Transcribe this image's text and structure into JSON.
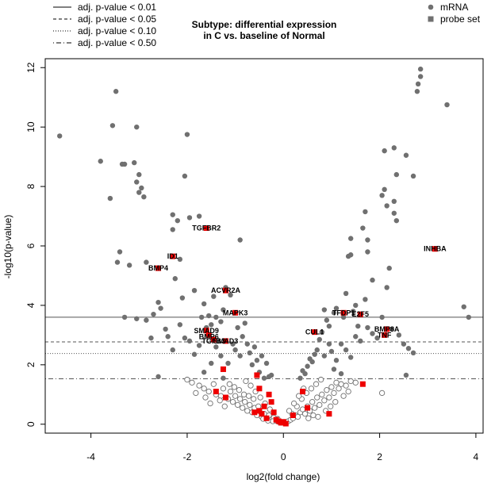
{
  "chart_data": {
    "type": "scatter",
    "title_lines": [
      "Subtype: differential expression",
      "in C vs. baseline of Normal"
    ],
    "xlabel": "log2(fold change)",
    "ylabel": "-log10(p-value)",
    "xlim": [
      -4.95,
      4.15
    ],
    "ylim": [
      -0.3,
      12.3
    ],
    "xticks": [
      -4,
      -2,
      0,
      2,
      4
    ],
    "yticks": [
      0,
      2,
      4,
      6,
      8,
      10,
      12
    ],
    "threshold_lines": [
      {
        "label": "adj. p-value < 0.01",
        "y": 3.6,
        "style": "solid"
      },
      {
        "label": "adj. p-value < 0.05",
        "y": 2.77,
        "style": "dashed"
      },
      {
        "label": "adj. p-value < 0.10",
        "y": 2.38,
        "style": "dotted"
      },
      {
        "label": "adj. p-value < 0.50",
        "y": 1.53,
        "style": "dotdash"
      }
    ],
    "legend_right": [
      {
        "label": "mRNA",
        "marker": "circle",
        "color": "#707070"
      },
      {
        "label": "probe set",
        "marker": "square",
        "color": "#707070"
      }
    ],
    "colors": {
      "significant": "#707070",
      "nonsignificant_stroke": "#707070",
      "probe": "#ee0000"
    },
    "significant_points": [
      [
        -4.65,
        9.7
      ],
      [
        -3.8,
        8.85
      ],
      [
        -3.6,
        7.6
      ],
      [
        -3.55,
        10.05
      ],
      [
        -3.48,
        11.2
      ],
      [
        -3.45,
        5.45
      ],
      [
        -3.4,
        5.8
      ],
      [
        -3.35,
        8.75
      ],
      [
        -3.3,
        8.75
      ],
      [
        -3.2,
        5.35
      ],
      [
        -3.1,
        8.8
      ],
      [
        -3.05,
        10.0
      ],
      [
        -3.05,
        8.15
      ],
      [
        -3.0,
        8.4
      ],
      [
        -3.0,
        7.8
      ],
      [
        -2.95,
        7.95
      ],
      [
        -2.9,
        7.65
      ],
      [
        -2.85,
        5.45
      ],
      [
        -2.6,
        4.1
      ],
      [
        -2.55,
        3.9
      ],
      [
        -2.45,
        3.2
      ],
      [
        -2.4,
        2.95
      ],
      [
        -2.3,
        7.05
      ],
      [
        -2.3,
        6.55
      ],
      [
        -2.25,
        4.9
      ],
      [
        -2.2,
        6.85
      ],
      [
        -2.15,
        5.55
      ],
      [
        -2.1,
        4.25
      ],
      [
        -2.05,
        8.35
      ],
      [
        -2.0,
        9.75
      ],
      [
        -1.95,
        6.95
      ],
      [
        -1.85,
        4.5
      ],
      [
        -1.75,
        7.0
      ],
      [
        -1.7,
        3.6
      ],
      [
        -1.65,
        4.05
      ],
      [
        -1.6,
        3.25
      ],
      [
        -1.55,
        3.65
      ],
      [
        -1.5,
        3.35
      ],
      [
        -1.45,
        4.3
      ],
      [
        -1.4,
        3.6
      ],
      [
        -1.3,
        3.45
      ],
      [
        -1.25,
        3.85
      ],
      [
        -1.2,
        4.6
      ],
      [
        -1.1,
        4.35
      ],
      [
        -0.9,
        6.2
      ],
      [
        -0.95,
        3.25
      ],
      [
        -0.85,
        2.95
      ],
      [
        -0.8,
        3.4
      ],
      [
        -0.75,
        2.7
      ],
      [
        -0.7,
        2.4
      ],
      [
        -0.65,
        2.0
      ],
      [
        -0.6,
        2.6
      ],
      [
        -0.55,
        2.15
      ],
      [
        -0.5,
        1.75
      ],
      [
        -0.45,
        2.3
      ],
      [
        -0.4,
        1.55
      ],
      [
        -0.35,
        2.05
      ],
      [
        -0.3,
        1.6
      ],
      [
        -0.25,
        1.65
      ],
      [
        -1.0,
        2.5
      ],
      [
        -0.9,
        2.3
      ],
      [
        -1.05,
        2.7
      ],
      [
        -1.15,
        2.05
      ],
      [
        -1.3,
        2.3
      ],
      [
        -1.4,
        2.6
      ],
      [
        -1.5,
        2.05
      ],
      [
        -1.65,
        1.75
      ],
      [
        -1.75,
        2.65
      ],
      [
        -1.85,
        2.35
      ],
      [
        -1.95,
        2.8
      ],
      [
        -2.05,
        2.9
      ],
      [
        -2.15,
        3.35
      ],
      [
        -2.7,
        3.7
      ],
      [
        -2.75,
        2.9
      ],
      [
        -2.85,
        3.5
      ],
      [
        -3.3,
        3.6
      ],
      [
        -3.05,
        3.55
      ],
      [
        -2.6,
        1.6
      ],
      [
        -2.3,
        2.5
      ],
      [
        -1.25,
        1.55
      ],
      [
        2.85,
        11.95
      ],
      [
        2.8,
        11.45
      ],
      [
        2.78,
        11.2
      ],
      [
        2.85,
        11.7
      ],
      [
        3.4,
        10.75
      ],
      [
        2.3,
        9.3
      ],
      [
        2.1,
        9.2
      ],
      [
        2.55,
        9.05
      ],
      [
        2.35,
        8.4
      ],
      [
        2.7,
        8.35
      ],
      [
        2.1,
        7.9
      ],
      [
        2.05,
        7.7
      ],
      [
        2.3,
        7.5
      ],
      [
        2.15,
        7.35
      ],
      [
        2.3,
        7.1
      ],
      [
        2.35,
        6.85
      ],
      [
        1.7,
        7.15
      ],
      [
        1.65,
        6.6
      ],
      [
        1.75,
        6.2
      ],
      [
        1.4,
        6.25
      ],
      [
        1.35,
        5.65
      ],
      [
        1.4,
        5.7
      ],
      [
        1.75,
        5.8
      ],
      [
        2.2,
        5.25
      ],
      [
        2.15,
        4.6
      ],
      [
        1.85,
        4.85
      ],
      [
        1.7,
        4.2
      ],
      [
        1.5,
        4.0
      ],
      [
        1.3,
        4.4
      ],
      [
        1.1,
        3.9
      ],
      [
        1.05,
        3.75
      ],
      [
        1.25,
        3.6
      ],
      [
        1.45,
        3.8
      ],
      [
        0.85,
        3.85
      ],
      [
        0.9,
        3.5
      ],
      [
        0.95,
        3.3
      ],
      [
        0.8,
        3.1
      ],
      [
        0.75,
        2.85
      ],
      [
        0.7,
        2.5
      ],
      [
        0.65,
        2.35
      ],
      [
        0.6,
        2.1
      ],
      [
        0.55,
        2.2
      ],
      [
        0.5,
        1.95
      ],
      [
        0.45,
        1.7
      ],
      [
        0.4,
        1.8
      ],
      [
        0.35,
        1.55
      ],
      [
        0.85,
        2.3
      ],
      [
        1.0,
        2.45
      ],
      [
        1.1,
        2.15
      ],
      [
        1.2,
        2.7
      ],
      [
        1.3,
        2.5
      ],
      [
        1.4,
        2.25
      ],
      [
        1.5,
        2.95
      ],
      [
        1.6,
        2.8
      ],
      [
        1.75,
        3.25
      ],
      [
        1.85,
        3.05
      ],
      [
        1.95,
        2.9
      ],
      [
        2.05,
        3.6
      ],
      [
        2.25,
        3.2
      ],
      [
        2.4,
        3.0
      ],
      [
        2.5,
        2.7
      ],
      [
        2.6,
        2.55
      ],
      [
        2.7,
        2.4
      ],
      [
        2.55,
        1.65
      ],
      [
        3.75,
        3.95
      ],
      [
        3.85,
        3.6
      ],
      [
        1.55,
        3.3
      ],
      [
        0.95,
        2.7
      ],
      [
        1.2,
        1.7
      ],
      [
        1.05,
        1.85
      ]
    ],
    "nonsignificant_points": [
      [
        -1.9,
        1.4
      ],
      [
        -1.75,
        1.3
      ],
      [
        -1.65,
        1.2
      ],
      [
        -1.55,
        1.1
      ],
      [
        -1.45,
        1.35
      ],
      [
        -1.4,
        1.0
      ],
      [
        -1.3,
        0.95
      ],
      [
        -1.25,
        1.2
      ],
      [
        -1.15,
        0.85
      ],
      [
        -1.1,
        1.1
      ],
      [
        -1.05,
        0.75
      ],
      [
        -1.0,
        0.95
      ],
      [
        -0.95,
        0.65
      ],
      [
        -0.9,
        0.85
      ],
      [
        -0.85,
        0.55
      ],
      [
        -0.8,
        0.75
      ],
      [
        -0.75,
        0.45
      ],
      [
        -0.7,
        0.65
      ],
      [
        -0.65,
        0.4
      ],
      [
        -0.6,
        0.55
      ],
      [
        -0.55,
        0.3
      ],
      [
        -0.5,
        0.45
      ],
      [
        -0.45,
        0.25
      ],
      [
        -0.4,
        0.35
      ],
      [
        -0.35,
        0.2
      ],
      [
        -0.3,
        0.3
      ],
      [
        -0.25,
        0.15
      ],
      [
        -0.2,
        0.22
      ],
      [
        -0.15,
        0.12
      ],
      [
        -0.1,
        0.08
      ],
      [
        -0.05,
        0.05
      ],
      [
        -0.12,
        0.18
      ],
      [
        -0.22,
        0.1
      ],
      [
        -0.32,
        0.12
      ],
      [
        -0.42,
        0.18
      ],
      [
        -0.52,
        0.6
      ],
      [
        -0.62,
        0.85
      ],
      [
        -0.72,
        0.95
      ],
      [
        -0.82,
        1.0
      ],
      [
        -0.92,
        1.15
      ],
      [
        -1.02,
        1.25
      ],
      [
        -1.12,
        1.35
      ],
      [
        -1.22,
        0.6
      ],
      [
        -1.32,
        0.8
      ],
      [
        -1.52,
        0.7
      ],
      [
        -1.62,
        0.9
      ],
      [
        -1.82,
        1.05
      ],
      [
        -2.0,
        1.5
      ],
      [
        -0.58,
        1.1
      ],
      [
        -0.48,
        0.9
      ],
      [
        -0.38,
        0.7
      ],
      [
        -0.28,
        0.5
      ],
      [
        -0.68,
        1.3
      ],
      [
        -0.78,
        1.45
      ],
      [
        0.05,
        0.05
      ],
      [
        0.1,
        0.1
      ],
      [
        0.15,
        0.15
      ],
      [
        0.2,
        0.2
      ],
      [
        0.25,
        0.3
      ],
      [
        0.3,
        0.25
      ],
      [
        0.35,
        0.4
      ],
      [
        0.4,
        0.5
      ],
      [
        0.45,
        0.35
      ],
      [
        0.5,
        0.6
      ],
      [
        0.55,
        0.45
      ],
      [
        0.6,
        0.75
      ],
      [
        0.65,
        0.55
      ],
      [
        0.7,
        0.9
      ],
      [
        0.75,
        0.65
      ],
      [
        0.8,
        1.0
      ],
      [
        0.85,
        0.8
      ],
      [
        0.9,
        1.15
      ],
      [
        0.95,
        0.9
      ],
      [
        1.0,
        1.25
      ],
      [
        1.05,
        1.05
      ],
      [
        1.1,
        1.4
      ],
      [
        1.15,
        1.2
      ],
      [
        1.2,
        1.35
      ],
      [
        1.3,
        1.3
      ],
      [
        1.4,
        1.45
      ],
      [
        1.5,
        1.4
      ],
      [
        2.05,
        1.05
      ],
      [
        0.18,
        0.35
      ],
      [
        0.28,
        0.6
      ],
      [
        0.38,
        0.85
      ],
      [
        0.48,
        1.05
      ],
      [
        0.58,
        1.2
      ],
      [
        0.68,
        1.35
      ],
      [
        0.78,
        1.5
      ],
      [
        0.88,
        0.45
      ],
      [
        0.98,
        0.6
      ],
      [
        1.08,
        0.75
      ],
      [
        0.42,
        1.2
      ],
      [
        0.32,
        0.95
      ],
      [
        0.22,
        0.7
      ],
      [
        0.12,
        0.45
      ],
      [
        0.72,
        0.25
      ],
      [
        0.62,
        0.3
      ],
      [
        0.52,
        0.2
      ],
      [
        1.25,
        0.95
      ],
      [
        1.35,
        1.1
      ]
    ],
    "probe_points": [
      [
        -0.45,
        0.35
      ],
      [
        -0.4,
        0.6
      ],
      [
        -0.35,
        0.2
      ],
      [
        -0.3,
        1.0
      ],
      [
        -0.25,
        0.75
      ],
      [
        -0.2,
        0.4
      ],
      [
        -0.15,
        0.15
      ],
      [
        -0.1,
        0.1
      ],
      [
        -0.05,
        0.05
      ],
      [
        0.0,
        0.08
      ],
      [
        0.05,
        0.02
      ],
      [
        -0.5,
        1.2
      ],
      [
        -0.55,
        1.65
      ],
      [
        -0.5,
        0.45
      ],
      [
        -0.6,
        0.4
      ],
      [
        -1.4,
        1.1
      ],
      [
        -1.25,
        1.85
      ],
      [
        -1.2,
        0.9
      ],
      [
        0.2,
        0.3
      ],
      [
        0.4,
        1.1
      ],
      [
        0.5,
        0.55
      ],
      [
        0.95,
        0.35
      ],
      [
        1.65,
        1.35
      ],
      [
        -1.6,
        6.6
      ],
      [
        -2.3,
        5.65
      ],
      [
        -2.6,
        5.25
      ],
      [
        3.15,
        5.9
      ],
      [
        -1.2,
        4.5
      ],
      [
        -1.0,
        3.75
      ],
      [
        1.25,
        3.75
      ],
      [
        1.6,
        3.7
      ],
      [
        0.65,
        3.1
      ],
      [
        2.15,
        3.2
      ],
      [
        2.1,
        3.0
      ],
      [
        -1.6,
        3.15
      ],
      [
        -1.55,
        3.0
      ],
      [
        -1.45,
        2.85
      ],
      [
        -1.2,
        2.8
      ]
    ],
    "gene_labels": [
      {
        "text": "TGFBR2",
        "x": -1.6,
        "y": 6.6
      },
      {
        "text": "ID1",
        "x": -2.3,
        "y": 5.65
      },
      {
        "text": "BMP4",
        "x": -2.6,
        "y": 5.25
      },
      {
        "text": "INHBA",
        "x": 3.15,
        "y": 5.9
      },
      {
        "text": "ACVR2A",
        "x": -1.2,
        "y": 4.5
      },
      {
        "text": "MAPK3",
        "x": -1.0,
        "y": 3.75
      },
      {
        "text": "TFDP1",
        "x": 1.25,
        "y": 3.75
      },
      {
        "text": "E2F5",
        "x": 1.6,
        "y": 3.7
      },
      {
        "text": "CUL1",
        "x": 0.65,
        "y": 3.1
      },
      {
        "text": "BMP8A",
        "x": 2.15,
        "y": 3.2
      },
      {
        "text": "TNF",
        "x": 2.1,
        "y": 3.0
      },
      {
        "text": "SMAD9",
        "x": -1.6,
        "y": 3.15
      },
      {
        "text": "BMP6",
        "x": -1.55,
        "y": 2.95
      },
      {
        "text": "TGFB3",
        "x": -1.45,
        "y": 2.8
      },
      {
        "text": "SMAD3",
        "x": -1.2,
        "y": 2.8
      }
    ]
  }
}
